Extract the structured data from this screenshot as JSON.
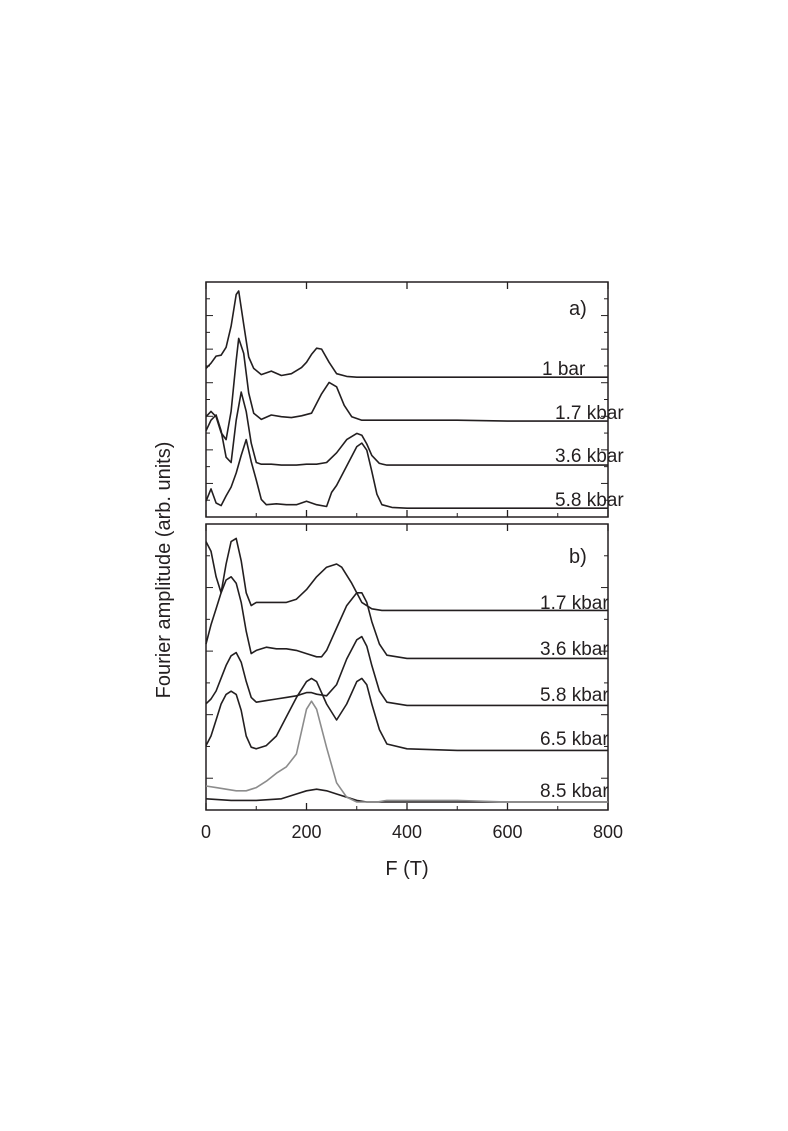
{
  "chart_data": {
    "type": "line",
    "xlabel": "F (T)",
    "ylabel": "Fourier amplitude (arb. units)",
    "xlim": [
      0,
      800
    ],
    "x_ticks": [
      "0",
      "200",
      "400",
      "600",
      "800"
    ],
    "grid": false,
    "panels": [
      {
        "label": "a)",
        "series": [
          {
            "name": "1 bar",
            "color": "#231f20",
            "x": [
              0,
              10,
              20,
              30,
              40,
              50,
              60,
              65,
              75,
              85,
              95,
              110,
              130,
              150,
              170,
              190,
              200,
              210,
              220,
              230,
              245,
              260,
              280,
              300,
              350,
              400,
              500,
              600,
              700,
              800
            ],
            "y": [
              0.12,
              0.18,
              0.26,
              0.27,
              0.36,
              0.6,
              0.96,
              1.0,
              0.62,
              0.25,
              0.12,
              0.05,
              0.09,
              0.04,
              0.06,
              0.13,
              0.19,
              0.28,
              0.35,
              0.34,
              0.19,
              0.06,
              0.03,
              0.02,
              0.02,
              0.02,
              0.02,
              0.02,
              0.02,
              0.02
            ]
          },
          {
            "name": "1.7 kbar",
            "color": "#231f20",
            "x": [
              0,
              10,
              20,
              30,
              40,
              50,
              60,
              65,
              75,
              85,
              95,
              110,
              130,
              150,
              170,
              190,
              210,
              230,
              245,
              260,
              275,
              290,
              310,
              350,
              400,
              500,
              600,
              700,
              800
            ],
            "y": [
              0.06,
              0.12,
              0.06,
              -0.12,
              -0.2,
              0.12,
              0.7,
              0.95,
              0.78,
              0.33,
              0.1,
              0.03,
              0.08,
              0.06,
              0.05,
              0.07,
              0.1,
              0.32,
              0.45,
              0.4,
              0.19,
              0.06,
              0.02,
              0.02,
              0.02,
              0.02,
              0.01,
              0.01,
              0.01
            ]
          },
          {
            "name": "3.6 kbar",
            "color": "#231f20",
            "x": [
              0,
              10,
              20,
              30,
              40,
              50,
              60,
              70,
              80,
              90,
              100,
              110,
              130,
              150,
              180,
              200,
              220,
              240,
              260,
              280,
              300,
              310,
              320,
              330,
              345,
              360,
              400,
              500,
              600,
              700,
              800
            ],
            "y": [
              0.4,
              0.52,
              0.58,
              0.4,
              0.1,
              0.04,
              0.52,
              0.84,
              0.62,
              0.26,
              0.04,
              0.02,
              0.02,
              0.01,
              0.01,
              0.02,
              0.02,
              0.04,
              0.15,
              0.3,
              0.37,
              0.35,
              0.25,
              0.12,
              0.03,
              0.01,
              0.01,
              0.01,
              0.01,
              0.01,
              0.01
            ]
          },
          {
            "name": "5.8 kbar",
            "color": "#231f20",
            "x": [
              0,
              10,
              20,
              30,
              40,
              50,
              60,
              70,
              80,
              90,
              100,
              110,
              120,
              140,
              160,
              180,
              200,
              220,
              240,
              250,
              260,
              280,
              300,
              310,
              320,
              330,
              340,
              350,
              370,
              400,
              500,
              600,
              700,
              800
            ],
            "y": [
              0.1,
              0.24,
              0.08,
              0.05,
              0.16,
              0.26,
              0.42,
              0.62,
              0.8,
              0.55,
              0.34,
              0.12,
              0.06,
              0.07,
              0.06,
              0.06,
              0.1,
              0.06,
              0.04,
              0.2,
              0.28,
              0.5,
              0.72,
              0.76,
              0.68,
              0.44,
              0.18,
              0.06,
              0.03,
              0.02,
              0.02,
              0.02,
              0.02,
              0.02
            ]
          }
        ]
      },
      {
        "label": "b)",
        "series": [
          {
            "name": "1.7 kbar",
            "color": "#231f20",
            "x": [
              0,
              10,
              20,
              30,
              40,
              50,
              60,
              70,
              80,
              90,
              100,
              120,
              140,
              160,
              180,
              200,
              220,
              240,
              260,
              270,
              290,
              310,
              330,
              350,
              400,
              500,
              600,
              700,
              800
            ],
            "y": [
              0.44,
              0.38,
              0.22,
              0.12,
              0.3,
              0.44,
              0.46,
              0.32,
              0.12,
              0.04,
              0.06,
              0.06,
              0.06,
              0.06,
              0.08,
              0.14,
              0.22,
              0.28,
              0.3,
              0.28,
              0.18,
              0.06,
              0.02,
              0.01,
              0.01,
              0.01,
              0.01,
              0.01,
              0.01
            ]
          },
          {
            "name": "3.6 kbar",
            "color": "#231f20",
            "x": [
              0,
              10,
              20,
              30,
              40,
              50,
              60,
              70,
              80,
              90,
              100,
              120,
              140,
              160,
              180,
              200,
              220,
              230,
              240,
              260,
              280,
              300,
              310,
              320,
              330,
              345,
              360,
              400,
              500,
              600,
              700,
              800
            ],
            "y": [
              0.1,
              0.22,
              0.32,
              0.42,
              0.5,
              0.52,
              0.48,
              0.36,
              0.18,
              0.04,
              0.06,
              0.08,
              0.07,
              0.07,
              0.06,
              0.04,
              0.02,
              0.02,
              0.06,
              0.2,
              0.34,
              0.42,
              0.42,
              0.36,
              0.24,
              0.1,
              0.03,
              0.01,
              0.01,
              0.01,
              0.01,
              0.01
            ]
          },
          {
            "name": "5.8 kbar",
            "color": "#231f20",
            "x": [
              0,
              10,
              20,
              30,
              40,
              50,
              60,
              70,
              80,
              90,
              100,
              120,
              140,
              160,
              180,
              200,
              210,
              220,
              240,
              260,
              280,
              300,
              310,
              320,
              330,
              345,
              360,
              400,
              500,
              600,
              700,
              800
            ],
            "y": [
              0.02,
              0.05,
              0.1,
              0.18,
              0.26,
              0.32,
              0.34,
              0.28,
              0.16,
              0.06,
              0.03,
              0.04,
              0.05,
              0.06,
              0.07,
              0.09,
              0.09,
              0.08,
              0.07,
              0.14,
              0.3,
              0.42,
              0.44,
              0.38,
              0.26,
              0.1,
              0.03,
              0.01,
              0.01,
              0.01,
              0.01,
              0.01
            ]
          },
          {
            "name": "6.5 kbar",
            "color": "#231f20",
            "x": [
              0,
              10,
              20,
              30,
              40,
              50,
              60,
              70,
              80,
              90,
              100,
              120,
              140,
              160,
              180,
              200,
              210,
              220,
              240,
              260,
              280,
              300,
              310,
              320,
              330,
              345,
              360,
              400,
              500,
              600,
              700,
              800
            ],
            "y": [
              0.04,
              0.1,
              0.2,
              0.3,
              0.36,
              0.38,
              0.36,
              0.26,
              0.1,
              0.03,
              0.02,
              0.04,
              0.1,
              0.22,
              0.34,
              0.44,
              0.46,
              0.44,
              0.3,
              0.2,
              0.3,
              0.44,
              0.46,
              0.42,
              0.3,
              0.14,
              0.05,
              0.02,
              0.01,
              0.01,
              0.01,
              0.01
            ]
          },
          {
            "name": "8.5 kbar",
            "color": "#231f20",
            "x": [
              0,
              50,
              100,
              150,
              180,
              200,
              220,
              240,
              260,
              280,
              300,
              320,
              350,
              400,
              500,
              600,
              700,
              800
            ],
            "y": [
              0.02,
              0.01,
              0.01,
              0.02,
              0.05,
              0.07,
              0.08,
              0.07,
              0.05,
              0.03,
              0.01,
              0.0,
              0.0,
              0.0,
              0.0,
              0.0,
              0.0,
              0.0
            ]
          },
          {
            "name": "",
            "color": "#8c8c8c",
            "x": [
              0,
              20,
              40,
              60,
              80,
              100,
              120,
              140,
              160,
              180,
              200,
              210,
              220,
              240,
              260,
              280,
              300,
              320,
              340,
              360,
              400,
              450,
              500,
              600,
              700,
              800
            ],
            "y": [
              0.1,
              0.09,
              0.08,
              0.07,
              0.07,
              0.09,
              0.13,
              0.18,
              0.22,
              0.3,
              0.58,
              0.63,
              0.58,
              0.34,
              0.12,
              0.03,
              0.0,
              0.0,
              0.0,
              0.01,
              0.01,
              0.01,
              0.01,
              0.0,
              0.0,
              0.0
            ]
          }
        ]
      }
    ]
  }
}
